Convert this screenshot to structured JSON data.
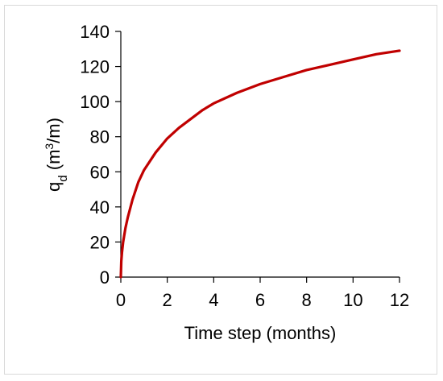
{
  "chart_data": {
    "type": "line",
    "title": "",
    "xlabel": "Time step (months)",
    "ylabel": {
      "main": "q",
      "subscript": "d",
      "unit_prefix": " (m",
      "unit_superscript": "3",
      "unit_suffix": "/m)"
    },
    "xlim": [
      0,
      12
    ],
    "ylim": [
      0,
      140
    ],
    "xticks": [
      "0",
      "2",
      "4",
      "6",
      "8",
      "10",
      "12"
    ],
    "yticks": [
      "0",
      "20",
      "40",
      "60",
      "80",
      "100",
      "120",
      "140"
    ],
    "grid": false,
    "legend": "none",
    "series": [
      {
        "color": "#c00000",
        "x": [
          0,
          0.02,
          0.05,
          0.1,
          0.2,
          0.3,
          0.5,
          0.75,
          1,
          1.5,
          2,
          2.5,
          3,
          3.5,
          4,
          5,
          6,
          7,
          8,
          9,
          10,
          11,
          12
        ],
        "y": [
          0,
          9,
          14,
          20,
          28,
          34,
          44,
          54,
          61,
          71,
          79,
          85,
          90,
          95,
          99,
          105,
          110,
          114,
          118,
          121,
          124,
          127,
          129
        ]
      }
    ]
  }
}
